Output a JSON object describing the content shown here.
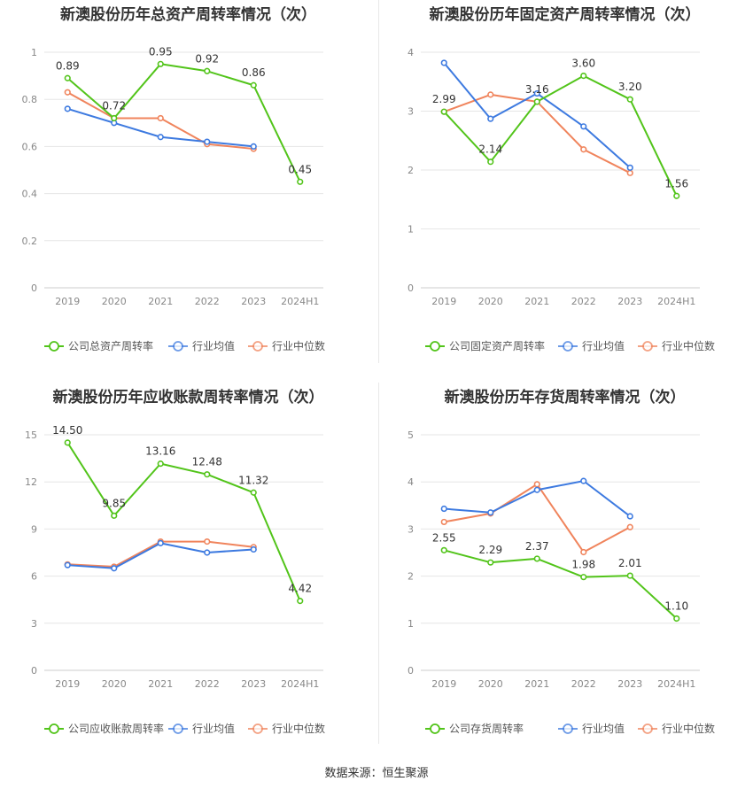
{
  "source_label": "数据来源：恒生聚源",
  "chart_data": [
    {
      "type": "line",
      "title": "新澳股份历年总资产周转率情况（次）",
      "categories": [
        "2019",
        "2020",
        "2021",
        "2022",
        "2023",
        "2024H1"
      ],
      "ylim": [
        0,
        1
      ],
      "yticks": [
        "0",
        "0.2",
        "0.4",
        "0.6",
        "0.8",
        "1"
      ],
      "ytick_values": [
        0,
        0.2,
        0.4,
        0.6,
        0.8,
        1
      ],
      "grid": true,
      "legend_position": "bottom",
      "series": [
        {
          "name": "公司总资产周转率",
          "color": "#52c41a",
          "values": [
            0.89,
            0.72,
            0.95,
            0.92,
            0.86,
            0.45
          ],
          "labels": [
            "0.89",
            "0.72",
            "0.95",
            "0.92",
            "0.86",
            "0.45"
          ]
        },
        {
          "name": "行业均值",
          "color": "#3d7ae0",
          "values": [
            0.76,
            0.7,
            0.64,
            0.62,
            0.6,
            null
          ]
        },
        {
          "name": "行业中位数",
          "color": "#f0845c",
          "values": [
            0.83,
            0.72,
            0.72,
            0.61,
            0.59,
            null
          ]
        }
      ]
    },
    {
      "type": "line",
      "title": "新澳股份历年固定资产周转率情况（次）",
      "categories": [
        "2019",
        "2020",
        "2021",
        "2022",
        "2023",
        "2024H1"
      ],
      "ylim": [
        0,
        4
      ],
      "yticks": [
        "0",
        "1",
        "2",
        "3",
        "4"
      ],
      "ytick_values": [
        0,
        1,
        2,
        3,
        4
      ],
      "grid": true,
      "legend_position": "bottom",
      "series": [
        {
          "name": "公司固定资产周转率",
          "color": "#52c41a",
          "values": [
            2.99,
            2.14,
            3.16,
            3.6,
            3.2,
            1.56
          ],
          "labels": [
            "2.99",
            "2.14",
            "3.16",
            "3.60",
            "3.20",
            "1.56"
          ]
        },
        {
          "name": "行业均值",
          "color": "#3d7ae0",
          "values": [
            3.82,
            2.87,
            3.3,
            2.74,
            2.04,
            null
          ]
        },
        {
          "name": "行业中位数",
          "color": "#f0845c",
          "values": [
            2.99,
            3.28,
            3.16,
            2.35,
            1.95,
            null
          ]
        }
      ]
    },
    {
      "type": "line",
      "title": "新澳股份历年应收账款周转率情况（次）",
      "categories": [
        "2019",
        "2020",
        "2021",
        "2022",
        "2023",
        "2024H1"
      ],
      "ylim": [
        0,
        15
      ],
      "yticks": [
        "0",
        "3",
        "6",
        "9",
        "12",
        "15"
      ],
      "ytick_values": [
        0,
        3,
        6,
        9,
        12,
        15
      ],
      "grid": true,
      "legend_position": "bottom",
      "series": [
        {
          "name": "公司应收账款周转率",
          "color": "#52c41a",
          "values": [
            14.5,
            9.85,
            13.16,
            12.48,
            11.32,
            4.42
          ],
          "labels": [
            "14.50",
            "9.85",
            "13.16",
            "12.48",
            "11.32",
            "4.42"
          ]
        },
        {
          "name": "行业均值",
          "color": "#3d7ae0",
          "values": [
            6.7,
            6.5,
            8.1,
            7.5,
            7.7,
            null
          ]
        },
        {
          "name": "行业中位数",
          "color": "#f0845c",
          "values": [
            6.75,
            6.6,
            8.2,
            8.2,
            7.85,
            null
          ]
        }
      ]
    },
    {
      "type": "line",
      "title": "新澳股份历年存货周转率情况（次）",
      "categories": [
        "2019",
        "2020",
        "2021",
        "2022",
        "2023",
        "2024H1"
      ],
      "ylim": [
        0,
        5
      ],
      "yticks": [
        "0",
        "1",
        "2",
        "3",
        "4",
        "5"
      ],
      "ytick_values": [
        0,
        1,
        2,
        3,
        4,
        5
      ],
      "grid": true,
      "legend_position": "bottom",
      "series": [
        {
          "name": "公司存货周转率",
          "color": "#52c41a",
          "values": [
            2.55,
            2.29,
            2.37,
            1.98,
            2.01,
            1.1
          ],
          "labels": [
            "2.55",
            "2.29",
            "2.37",
            "1.98",
            "2.01",
            "1.10"
          ]
        },
        {
          "name": "行业均值",
          "color": "#3d7ae0",
          "values": [
            3.43,
            3.35,
            3.83,
            4.02,
            3.27,
            null
          ]
        },
        {
          "name": "行业中位数",
          "color": "#f0845c",
          "values": [
            3.15,
            3.33,
            3.95,
            2.51,
            3.04,
            null
          ]
        }
      ]
    }
  ]
}
